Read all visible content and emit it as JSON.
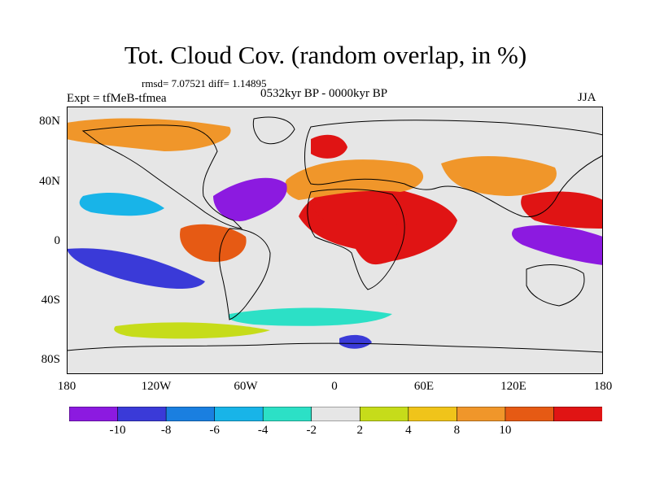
{
  "header": {
    "title": "Tot. Cloud Cov. (random overlap, in %)",
    "stats": "rmsd= 7.07521 diff= 1.14895",
    "experiment": "Expt = tfMeB-tfmea",
    "period": "0532kyr BP - 0000kyr BP",
    "season": "JJA"
  },
  "axes": {
    "lat_ticks": [
      "80N",
      "40N",
      "0",
      "40S",
      "80S"
    ],
    "lon_ticks": [
      "180",
      "120W",
      "60W",
      "0",
      "60E",
      "120E",
      "180"
    ]
  },
  "colorbar": {
    "labels": [
      "-10",
      "-8",
      "-6",
      "-4",
      "-2",
      "2",
      "4",
      "8",
      "10"
    ],
    "colors": [
      "#8c1ae0",
      "#3a3ad8",
      "#1a7fe0",
      "#18b4e8",
      "#2ce0c6",
      "#e6e6e6",
      "#c6dc1a",
      "#f0c41a",
      "#f0962a",
      "#e65a14",
      "#e01414"
    ]
  },
  "palette": {
    "neutral": "#e6e6e6",
    "coast": "#000000"
  }
}
